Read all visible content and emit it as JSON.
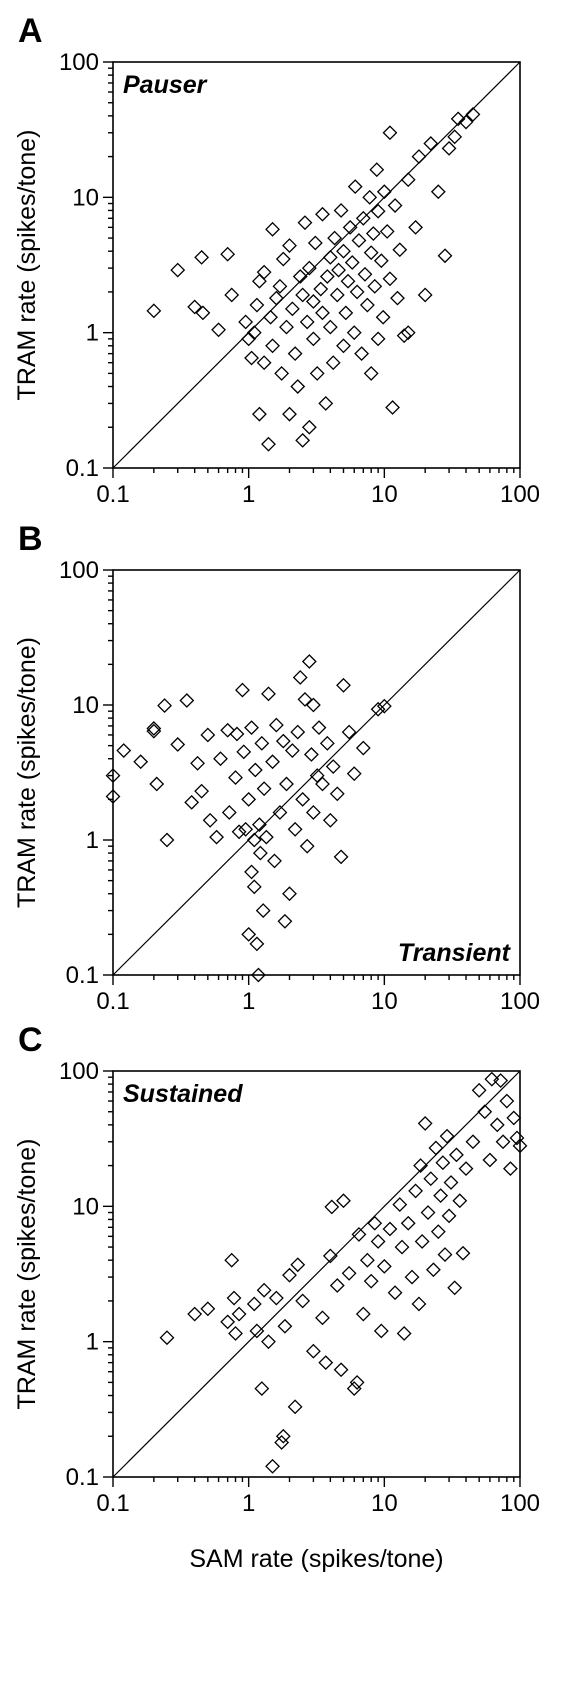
{
  "figure": {
    "xlabel": "SAM rate (spikes/tone)",
    "ylabel": "TRAM rate (spikes/tone)"
  },
  "chart_data": [
    {
      "type": "scatter",
      "panel": "A",
      "label": "Pauser",
      "label_position": "top-left",
      "scale": "log",
      "xlim": [
        0.1,
        100
      ],
      "ylim": [
        0.1,
        100
      ],
      "x_ticks": [
        "0.1",
        "1",
        "10",
        "100"
      ],
      "y_ticks": [
        "0.1",
        "1",
        "10",
        "100"
      ],
      "reference_line": "y = x",
      "grid": false,
      "xlabel": "",
      "ylabel": "TRAM rate (spikes/tone)",
      "points": [
        [
          0.2,
          1.45
        ],
        [
          0.3,
          2.9
        ],
        [
          0.4,
          1.55
        ],
        [
          0.45,
          3.6
        ],
        [
          0.46,
          1.4
        ],
        [
          0.6,
          1.05
        ],
        [
          0.7,
          3.8
        ],
        [
          0.75,
          1.9
        ],
        [
          0.95,
          1.2
        ],
        [
          1.0,
          0.9
        ],
        [
          1.05,
          0.65
        ],
        [
          1.1,
          1.0
        ],
        [
          1.15,
          1.6
        ],
        [
          1.2,
          0.25
        ],
        [
          1.2,
          2.4
        ],
        [
          1.3,
          2.8
        ],
        [
          1.3,
          0.6
        ],
        [
          1.4,
          0.15
        ],
        [
          1.45,
          1.3
        ],
        [
          1.5,
          5.8
        ],
        [
          1.5,
          0.8
        ],
        [
          1.6,
          1.8
        ],
        [
          1.7,
          2.2
        ],
        [
          1.75,
          0.5
        ],
        [
          1.8,
          3.5
        ],
        [
          1.9,
          1.1
        ],
        [
          2.0,
          0.25
        ],
        [
          2.0,
          4.4
        ],
        [
          2.1,
          1.5
        ],
        [
          2.2,
          0.7
        ],
        [
          2.3,
          0.4
        ],
        [
          2.4,
          2.6
        ],
        [
          2.5,
          1.9
        ],
        [
          2.5,
          0.16
        ],
        [
          2.6,
          6.5
        ],
        [
          2.7,
          1.2
        ],
        [
          2.8,
          3.0
        ],
        [
          2.8,
          0.2
        ],
        [
          3.0,
          0.9
        ],
        [
          3.0,
          1.7
        ],
        [
          3.1,
          4.6
        ],
        [
          3.2,
          0.5
        ],
        [
          3.4,
          2.1
        ],
        [
          3.5,
          1.4
        ],
        [
          3.5,
          7.5
        ],
        [
          3.7,
          0.3
        ],
        [
          3.8,
          2.6
        ],
        [
          4.0,
          1.1
        ],
        [
          4.0,
          3.6
        ],
        [
          4.2,
          0.6
        ],
        [
          4.3,
          5.0
        ],
        [
          4.5,
          1.9
        ],
        [
          4.6,
          2.9
        ],
        [
          4.8,
          8.0
        ],
        [
          5.0,
          0.8
        ],
        [
          5.0,
          4.0
        ],
        [
          5.2,
          1.4
        ],
        [
          5.4,
          2.4
        ],
        [
          5.6,
          6.0
        ],
        [
          5.8,
          3.3
        ],
        [
          6.0,
          1.0
        ],
        [
          6.1,
          12.0
        ],
        [
          6.3,
          2.0
        ],
        [
          6.5,
          4.8
        ],
        [
          6.8,
          0.7
        ],
        [
          7.0,
          7.0
        ],
        [
          7.2,
          2.7
        ],
        [
          7.5,
          1.6
        ],
        [
          7.8,
          10.0
        ],
        [
          8.0,
          3.9
        ],
        [
          8.0,
          0.5
        ],
        [
          8.3,
          5.4
        ],
        [
          8.5,
          2.2
        ],
        [
          8.8,
          16.0
        ],
        [
          9.0,
          0.9
        ],
        [
          9.0,
          7.9
        ],
        [
          9.5,
          3.4
        ],
        [
          9.8,
          1.3
        ],
        [
          10.0,
          11.0
        ],
        [
          10.5,
          5.6
        ],
        [
          11.0,
          2.5
        ],
        [
          11.0,
          30.0
        ],
        [
          11.5,
          0.28
        ],
        [
          12.0,
          8.7
        ],
        [
          12.5,
          1.8
        ],
        [
          13.0,
          4.1
        ],
        [
          14.0,
          0.95
        ],
        [
          15.0,
          1.0
        ],
        [
          15.0,
          13.5
        ],
        [
          17.0,
          6.0
        ],
        [
          18.0,
          20.0
        ],
        [
          20.0,
          1.9
        ],
        [
          22.0,
          25.0
        ],
        [
          25.0,
          11.0
        ],
        [
          28.0,
          3.7
        ],
        [
          30.0,
          23.0
        ],
        [
          33.0,
          28.0
        ],
        [
          35.0,
          38.0
        ],
        [
          40.0,
          36.0
        ],
        [
          45.0,
          41.0
        ]
      ]
    },
    {
      "type": "scatter",
      "panel": "B",
      "label": "Transient",
      "label_position": "bottom-right",
      "scale": "log",
      "xlim": [
        0.1,
        100
      ],
      "ylim": [
        0.1,
        100
      ],
      "x_ticks": [
        "0.1",
        "1",
        "10",
        "100"
      ],
      "y_ticks": [
        "0.1",
        "1",
        "10",
        "100"
      ],
      "reference_line": "y = x",
      "grid": false,
      "xlabel": "",
      "ylabel": "TRAM rate (spikes/tone)",
      "points": [
        [
          0.1,
          3.0
        ],
        [
          0.1,
          2.1
        ],
        [
          0.12,
          4.6
        ],
        [
          0.16,
          3.8
        ],
        [
          0.2,
          6.7
        ],
        [
          0.2,
          6.4
        ],
        [
          0.21,
          2.6
        ],
        [
          0.24,
          9.9
        ],
        [
          0.25,
          1.0
        ],
        [
          0.3,
          5.1
        ],
        [
          0.35,
          10.8
        ],
        [
          0.38,
          1.9
        ],
        [
          0.42,
          3.7
        ],
        [
          0.45,
          2.3
        ],
        [
          0.5,
          6.0
        ],
        [
          0.52,
          1.4
        ],
        [
          0.58,
          1.05
        ],
        [
          0.62,
          4.0
        ],
        [
          0.7,
          6.5
        ],
        [
          0.72,
          1.6
        ],
        [
          0.8,
          2.9
        ],
        [
          0.82,
          6.1
        ],
        [
          0.85,
          1.15
        ],
        [
          0.9,
          12.9
        ],
        [
          0.92,
          4.5
        ],
        [
          0.95,
          1.2
        ],
        [
          1.0,
          0.2
        ],
        [
          1.0,
          2.0
        ],
        [
          1.05,
          6.8
        ],
        [
          1.05,
          0.58
        ],
        [
          1.1,
          0.45
        ],
        [
          1.1,
          1.0
        ],
        [
          1.12,
          3.3
        ],
        [
          1.15,
          0.17
        ],
        [
          1.18,
          0.1
        ],
        [
          1.2,
          1.3
        ],
        [
          1.22,
          0.8
        ],
        [
          1.25,
          5.2
        ],
        [
          1.28,
          0.3
        ],
        [
          1.3,
          2.4
        ],
        [
          1.35,
          1.05
        ],
        [
          1.4,
          12.1
        ],
        [
          1.5,
          3.8
        ],
        [
          1.55,
          0.7
        ],
        [
          1.6,
          7.1
        ],
        [
          1.7,
          1.6
        ],
        [
          1.8,
          5.4
        ],
        [
          1.85,
          0.25
        ],
        [
          1.9,
          2.6
        ],
        [
          2.0,
          0.4
        ],
        [
          2.1,
          4.6
        ],
        [
          2.2,
          1.2
        ],
        [
          2.3,
          6.3
        ],
        [
          2.4,
          16.0
        ],
        [
          2.5,
          2.0
        ],
        [
          2.6,
          11.0
        ],
        [
          2.7,
          0.9
        ],
        [
          2.8,
          21.0
        ],
        [
          2.9,
          4.3
        ],
        [
          3.0,
          10.0
        ],
        [
          3.0,
          1.6
        ],
        [
          3.2,
          3.0
        ],
        [
          3.3,
          6.8
        ],
        [
          3.5,
          2.6
        ],
        [
          3.8,
          5.2
        ],
        [
          4.0,
          1.4
        ],
        [
          4.2,
          3.5
        ],
        [
          4.5,
          2.2
        ],
        [
          4.8,
          0.75
        ],
        [
          5.0,
          14.0
        ],
        [
          5.5,
          6.3
        ],
        [
          6.0,
          3.1
        ],
        [
          7.0,
          4.8
        ],
        [
          9.0,
          9.3
        ],
        [
          10.0,
          9.8
        ]
      ]
    },
    {
      "type": "scatter",
      "panel": "C",
      "label": "Sustained",
      "label_position": "top-left",
      "scale": "log",
      "xlim": [
        0.1,
        100
      ],
      "ylim": [
        0.1,
        100
      ],
      "x_ticks": [
        "0.1",
        "1",
        "10",
        "100"
      ],
      "y_ticks": [
        "0.1",
        "1",
        "10",
        "100"
      ],
      "reference_line": "y = x",
      "grid": false,
      "xlabel": "SAM rate (spikes/tone)",
      "ylabel": "TRAM rate (spikes/tone)",
      "points": [
        [
          0.25,
          1.07
        ],
        [
          0.4,
          1.6
        ],
        [
          0.5,
          1.75
        ],
        [
          0.7,
          1.4
        ],
        [
          0.75,
          4.0
        ],
        [
          0.78,
          2.1
        ],
        [
          0.8,
          1.15
        ],
        [
          0.85,
          1.6
        ],
        [
          1.1,
          1.9
        ],
        [
          1.15,
          1.2
        ],
        [
          1.25,
          0.45
        ],
        [
          1.3,
          2.4
        ],
        [
          1.4,
          1.0
        ],
        [
          1.5,
          0.12
        ],
        [
          1.6,
          2.1
        ],
        [
          1.75,
          0.18
        ],
        [
          1.8,
          0.2
        ],
        [
          1.85,
          1.3
        ],
        [
          2.0,
          3.1
        ],
        [
          2.2,
          0.33
        ],
        [
          2.3,
          3.7
        ],
        [
          2.5,
          2.0
        ],
        [
          3.0,
          0.85
        ],
        [
          3.5,
          1.5
        ],
        [
          3.7,
          0.7
        ],
        [
          4.0,
          4.3
        ],
        [
          4.1,
          9.9
        ],
        [
          4.5,
          2.6
        ],
        [
          4.8,
          0.62
        ],
        [
          5.0,
          11.0
        ],
        [
          5.5,
          3.2
        ],
        [
          6.0,
          0.45
        ],
        [
          6.3,
          0.5
        ],
        [
          6.5,
          6.2
        ],
        [
          7.0,
          1.6
        ],
        [
          7.5,
          4.0
        ],
        [
          8.0,
          2.8
        ],
        [
          8.5,
          7.5
        ],
        [
          9.0,
          5.5
        ],
        [
          9.5,
          1.2
        ],
        [
          10.0,
          3.6
        ],
        [
          11.0,
          6.8
        ],
        [
          12.0,
          2.3
        ],
        [
          13.0,
          10.3
        ],
        [
          13.5,
          5.0
        ],
        [
          14.0,
          1.15
        ],
        [
          15.0,
          7.5
        ],
        [
          16.0,
          3.0
        ],
        [
          17.0,
          13.0
        ],
        [
          18.0,
          1.9
        ],
        [
          18.5,
          20.0
        ],
        [
          19.0,
          5.5
        ],
        [
          20.0,
          41.0
        ],
        [
          21.0,
          9.0
        ],
        [
          22.0,
          16.0
        ],
        [
          23.0,
          3.4
        ],
        [
          24.0,
          27.0
        ],
        [
          25.0,
          6.5
        ],
        [
          26.0,
          12.0
        ],
        [
          27.0,
          21.0
        ],
        [
          28.0,
          4.4
        ],
        [
          29.0,
          33.0
        ],
        [
          30.0,
          8.5
        ],
        [
          31.0,
          15.0
        ],
        [
          33.0,
          2.5
        ],
        [
          34.0,
          24.0
        ],
        [
          36.0,
          11.0
        ],
        [
          38.0,
          4.5
        ],
        [
          40.0,
          19.0
        ],
        [
          45.0,
          30.0
        ],
        [
          50.0,
          72.0
        ],
        [
          55.0,
          50.0
        ],
        [
          60.0,
          22.0
        ],
        [
          62.0,
          87.0
        ],
        [
          68.0,
          40.0
        ],
        [
          72.0,
          85.0
        ],
        [
          75.0,
          30.0
        ],
        [
          80.0,
          60.0
        ],
        [
          85.0,
          19.0
        ],
        [
          90.0,
          45.0
        ],
        [
          95.0,
          32.0
        ],
        [
          100.0,
          28.0
        ]
      ]
    }
  ]
}
